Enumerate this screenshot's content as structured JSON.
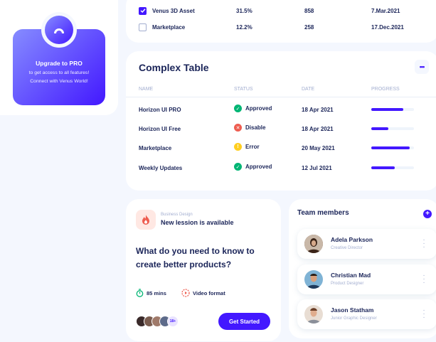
{
  "promo": {
    "title": "Upgrade to PRO",
    "line1": "to get access to all features!",
    "line2": "Connect with Venus World!"
  },
  "top_table": {
    "rows": [
      {
        "name": "Venus 3D Asset",
        "checked": true,
        "progress": "31.5%",
        "quantity": "858",
        "date": "7.Mar.2021"
      },
      {
        "name": "Marketplace",
        "checked": false,
        "progress": "12.2%",
        "quantity": "258",
        "date": "17.Dec.2021"
      }
    ]
  },
  "complex_table": {
    "title": "Complex Table",
    "more_icon": "more-dots-icon",
    "headers": [
      "NAME",
      "STATUS",
      "DATE",
      "PROGRESS"
    ],
    "rows": [
      {
        "name": "Horizon UI PRO",
        "status": "Approved",
        "status_color": "#01b574",
        "date": "18 Apr 2021",
        "progress": 0.75
      },
      {
        "name": "Horizon UI Free",
        "status": "Disable",
        "status_color": "#ee5d50",
        "date": "18 Apr 2021",
        "progress": 0.4
      },
      {
        "name": "Marketplace",
        "status": "Error",
        "status_color": "#ffce20",
        "date": "20 May 2021",
        "progress": 0.9
      },
      {
        "name": "Weekly Updates",
        "status": "Approved",
        "status_color": "#01b574",
        "date": "12 Jul 2021",
        "progress": 0.55
      }
    ]
  },
  "course": {
    "category": "Business Design",
    "subtitle": "New lession is available",
    "question": "What do you need to know to create better products?",
    "duration": "85 mins",
    "format": "Video format",
    "more_count": "18+",
    "cta": "Get Started"
  },
  "team": {
    "title": "Team members",
    "members": [
      {
        "name": "Adela Parkson",
        "role": "Creative Director"
      },
      {
        "name": "Christian Mad",
        "role": "Product Designer"
      },
      {
        "name": "Jason Statham",
        "role": "Junior Graphic Designer"
      }
    ]
  },
  "colors": {
    "brand": "#4318ff",
    "text_primary": "#1b2559",
    "text_secondary": "#a3aed0",
    "background": "#f4f7fe"
  }
}
